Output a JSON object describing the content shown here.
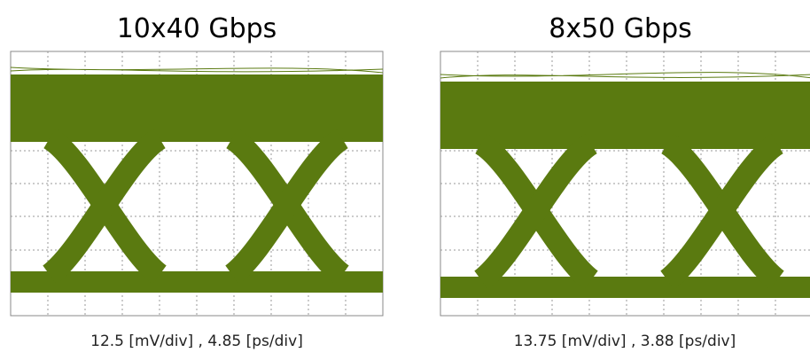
{
  "panels": [
    {
      "title": "10x40 Gbps",
      "caption": "12.5 [mV/div] , 4.85 [ps/div]"
    },
    {
      "title": "8x50 Gbps",
      "caption": "13.75 [mV/div] , 3.88 [ps/div]"
    }
  ]
}
